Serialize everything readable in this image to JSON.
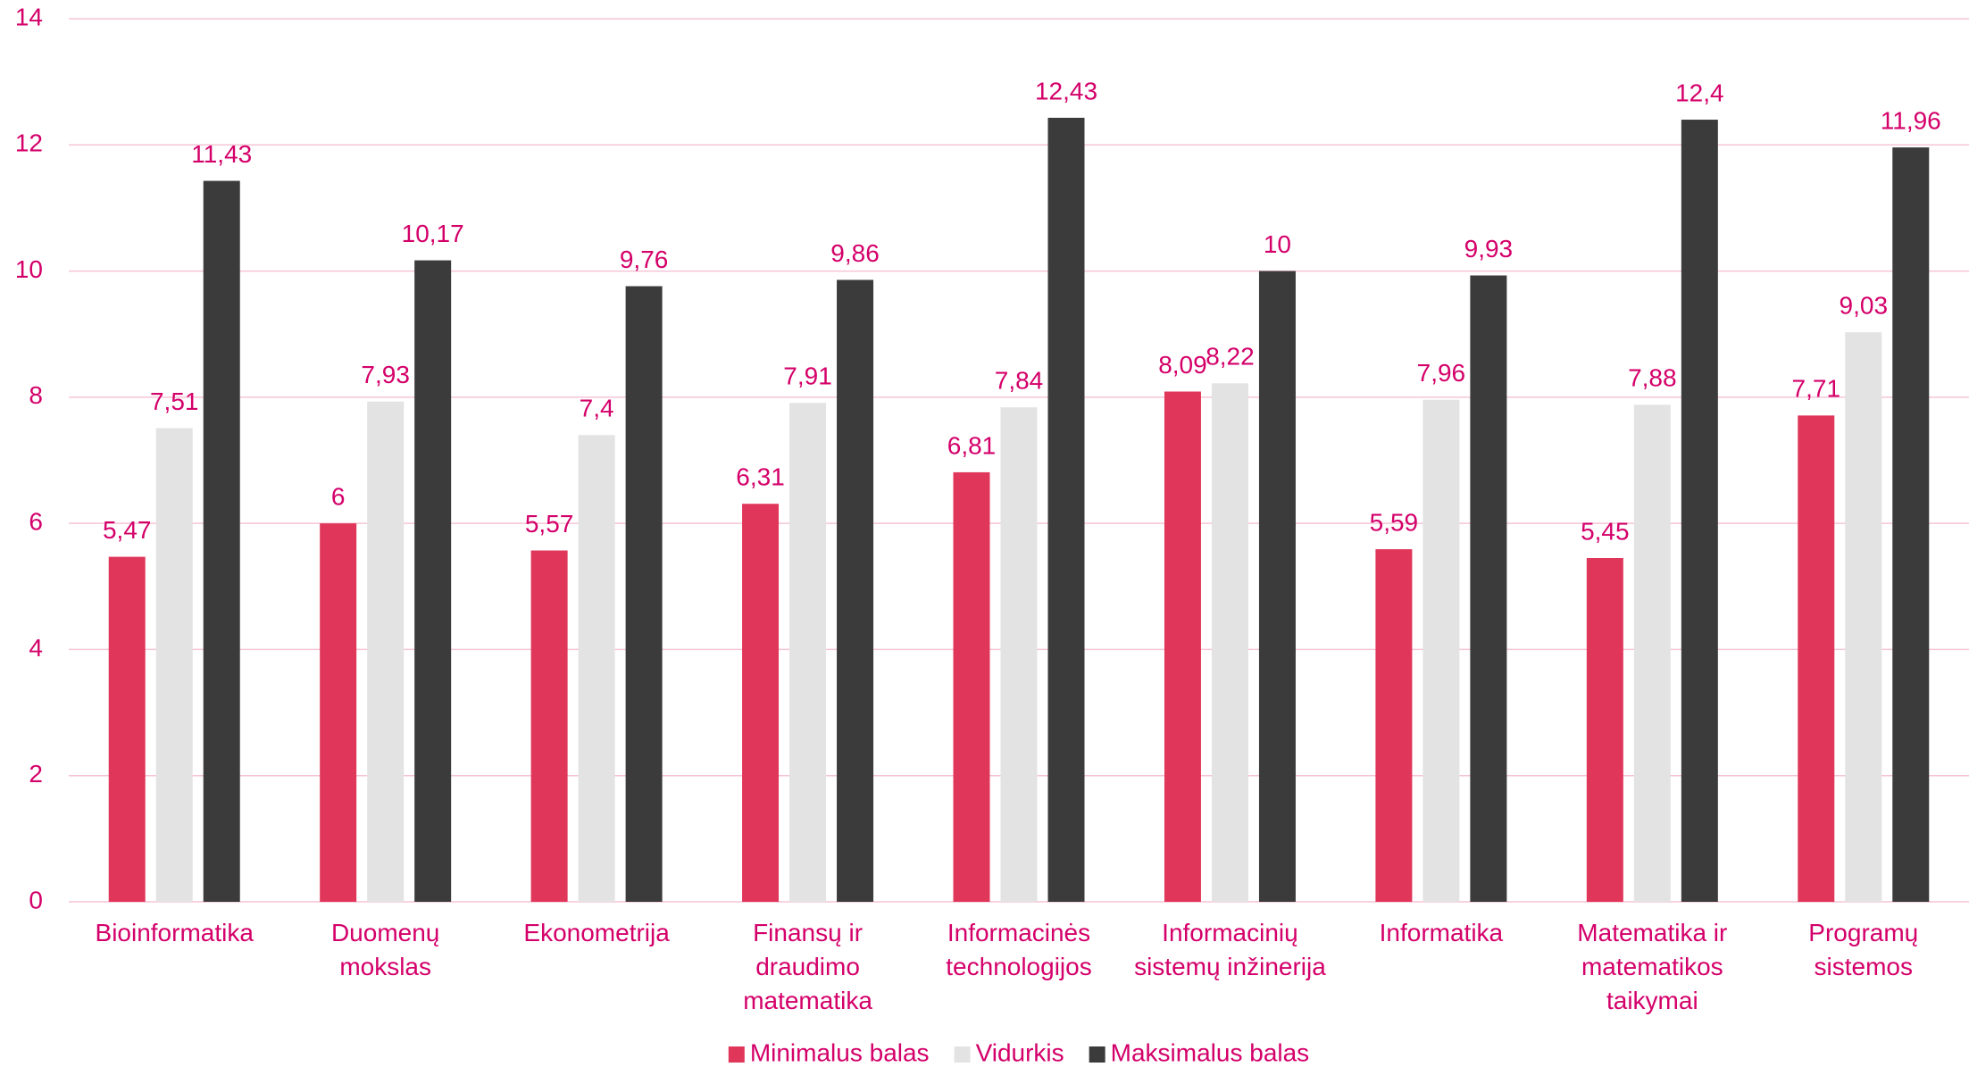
{
  "chart_data": {
    "type": "bar",
    "categories": [
      "Bioinformatika",
      "Duomenų mokslas",
      "Ekonometrija",
      "Finansų ir draudimo matematika",
      "Informacinės technologijos",
      "Informacinių sistemų inžinerija",
      "Informatika",
      "Matematika ir matematikos taikymai",
      "Programų sistemos"
    ],
    "series": [
      {
        "name": "Minimalus balas",
        "color": "#e0365a",
        "values": [
          5.47,
          6,
          5.57,
          6.31,
          6.81,
          8.09,
          5.59,
          5.45,
          7.71
        ],
        "value_labels": [
          "5,47",
          "6",
          "5,57",
          "6,31",
          "6,81",
          "8,09",
          "5,59",
          "5,45",
          "7,71"
        ]
      },
      {
        "name": "Vidurkis",
        "color": "#e3e3e3",
        "values": [
          7.51,
          7.93,
          7.4,
          7.91,
          7.84,
          8.22,
          7.96,
          7.88,
          9.03
        ],
        "value_labels": [
          "7,51",
          "7,93",
          "7,4",
          "7,91",
          "7,84",
          "8,22",
          "7,96",
          "7,88",
          "9,03"
        ]
      },
      {
        "name": "Maksimalus balas",
        "color": "#3b3b3b",
        "values": [
          11.43,
          10.17,
          9.76,
          9.86,
          12.43,
          10,
          9.93,
          12.4,
          11.96
        ],
        "value_labels": [
          "11,43",
          "10,17",
          "9,76",
          "9,86",
          "12,43",
          "10",
          "9,93",
          "12,4",
          "11,96"
        ]
      }
    ],
    "ylim": [
      0,
      14
    ],
    "yticks": [
      0,
      2,
      4,
      6,
      8,
      10,
      12,
      14
    ],
    "grid": true,
    "legend": "bottom"
  }
}
